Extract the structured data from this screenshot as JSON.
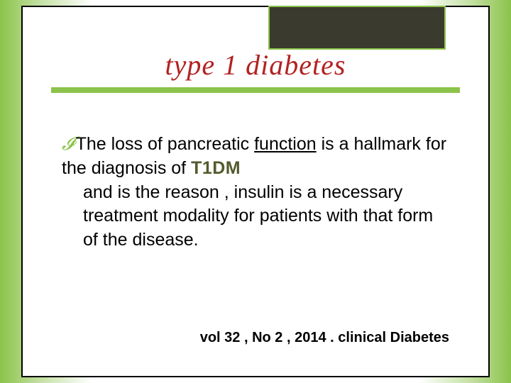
{
  "colors": {
    "gradient_outer": "#8bc34a",
    "gradient_mid": "#c5e1a5",
    "slide_bg": "#ffffff",
    "border": "#000000",
    "accent_box_bg": "#3a3a2e",
    "accent_box_border": "#8bc34a",
    "title_color": "#b22222",
    "rule_color": "#8bc34a",
    "bullet_color": "#8bc34a",
    "body_color": "#000000",
    "emph_color": "#545a2e"
  },
  "typography": {
    "title_fontsize": 40,
    "body_fontsize": 25,
    "citation_fontsize": 20,
    "title_font": "Georgia italic",
    "body_font": "Arial"
  },
  "title": "type  1  diabetes",
  "body": {
    "lead": "The   loss  of  pancreatic ",
    "underline": "function",
    "mid1": "  is a hallmark for  the  diagnosis of  ",
    "emph": "T1DM",
    "rest": "and  is  the  reason ,   insulin is  a necessary  treatment  modality for patients  with  that  form  of  the disease."
  },
  "citation": "vol 32 , No 2 , 2014 . clinical  Diabetes"
}
